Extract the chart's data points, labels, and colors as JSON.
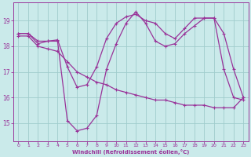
{
  "background_color": "#caeaea",
  "grid_color": "#a0cccc",
  "line_color": "#993399",
  "marker_color": "#993399",
  "xlabel": "Windchill (Refroidissement éolien,°C)",
  "xlabel_color": "#993399",
  "tick_color": "#993399",
  "ylim": [
    14.3,
    19.7
  ],
  "xlim": [
    -0.5,
    23.5
  ],
  "yticks": [
    15,
    16,
    17,
    18,
    19
  ],
  "xticks": [
    0,
    1,
    2,
    3,
    4,
    5,
    6,
    7,
    8,
    9,
    10,
    11,
    12,
    13,
    14,
    15,
    16,
    17,
    18,
    19,
    20,
    21,
    22,
    23
  ],
  "line1_x": [
    0,
    1,
    2,
    3,
    4,
    5,
    6,
    7,
    8,
    9,
    10,
    11,
    12,
    13,
    14,
    15,
    16,
    17,
    18,
    19,
    20,
    21,
    22,
    23
  ],
  "line1_y": [
    18.5,
    18.5,
    18.1,
    18.2,
    18.2,
    15.1,
    14.7,
    14.8,
    15.3,
    17.1,
    18.1,
    18.9,
    19.35,
    18.9,
    18.2,
    18.0,
    18.1,
    18.5,
    18.8,
    19.1,
    19.1,
    17.1,
    16.0,
    15.9
  ],
  "line2_x": [
    0,
    1,
    2,
    3,
    4,
    5,
    6,
    7,
    8,
    9,
    10,
    11,
    12,
    13,
    14,
    15,
    16,
    17,
    18,
    19,
    20,
    21,
    22,
    23
  ],
  "line2_y": [
    18.5,
    18.5,
    18.2,
    18.2,
    18.25,
    17.2,
    16.4,
    16.5,
    17.2,
    18.3,
    18.9,
    19.15,
    19.25,
    19.0,
    18.9,
    18.5,
    18.3,
    18.7,
    19.1,
    19.1,
    19.1,
    18.5,
    17.1,
    16.0
  ],
  "line3_x": [
    0,
    1,
    2,
    3,
    4,
    5,
    6,
    7,
    8,
    9,
    10,
    11,
    12,
    13,
    14,
    15,
    16,
    17,
    18,
    19,
    20,
    21,
    22,
    23
  ],
  "line3_y": [
    18.4,
    18.4,
    18.0,
    17.9,
    17.8,
    17.4,
    17.0,
    16.8,
    16.6,
    16.5,
    16.3,
    16.2,
    16.1,
    16.0,
    15.9,
    15.9,
    15.8,
    15.7,
    15.7,
    15.7,
    15.6,
    15.6,
    15.6,
    16.0
  ]
}
